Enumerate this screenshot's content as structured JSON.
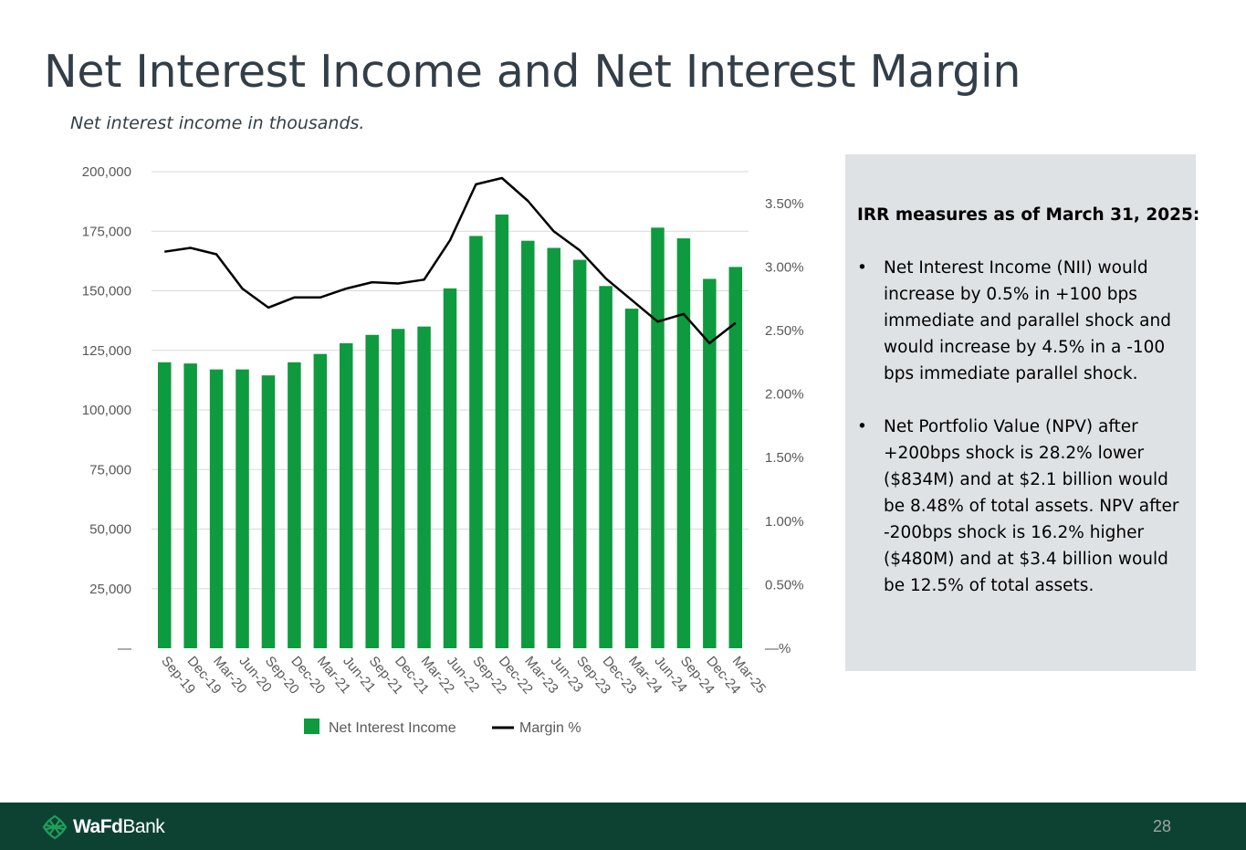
{
  "slide": {
    "title": "Net Interest Income and Net Interest Margin",
    "subtitle": "Net interest income in thousands."
  },
  "chart_data": {
    "type": "bar",
    "categories": [
      "Sep-19",
      "Dec-19",
      "Mar-20",
      "Jun-20",
      "Sep-20",
      "Dec-20",
      "Mar-21",
      "Jun-21",
      "Sep-21",
      "Dec-21",
      "Mar-22",
      "Jun-22",
      "Sep-22",
      "Dec-22",
      "Mar-23",
      "Jun-23",
      "Sep-23",
      "Dec-23",
      "Mar-24",
      "Jun-24",
      "Sep-24",
      "Dec-24",
      "Mar-25"
    ],
    "series": [
      {
        "name": "Net Interest Income",
        "type": "bar",
        "axis": "left",
        "color": "#0e9a3e",
        "values": [
          120000,
          119500,
          117000,
          117000,
          114500,
          120000,
          123500,
          128000,
          131500,
          134000,
          135000,
          151000,
          173000,
          182000,
          171000,
          168000,
          163000,
          152000,
          142500,
          176500,
          172000,
          155000,
          160000
        ]
      },
      {
        "name": "Margin %",
        "type": "line",
        "axis": "right",
        "color": "#000000",
        "values": [
          3.12,
          3.15,
          3.1,
          2.83,
          2.68,
          2.76,
          2.76,
          2.83,
          2.88,
          2.87,
          2.9,
          3.21,
          3.65,
          3.7,
          3.52,
          3.28,
          3.13,
          2.91,
          2.74,
          2.57,
          2.63,
          2.4,
          2.56
        ]
      }
    ],
    "y_left": {
      "range": [
        0,
        200000
      ],
      "ticks": [
        0,
        25000,
        50000,
        75000,
        100000,
        125000,
        150000,
        175000,
        200000
      ],
      "tick_labels": [
        "—",
        "25,000",
        "50,000",
        "75,000",
        "100,000",
        "125,000",
        "150,000",
        "175,000",
        "200,000"
      ]
    },
    "y_right": {
      "range": [
        0,
        3.75
      ],
      "ticks": [
        0,
        0.5,
        1,
        1.5,
        2,
        2.5,
        3,
        3.5
      ],
      "tick_labels": [
        "—%",
        "0.50%",
        "1.00%",
        "1.50%",
        "2.00%",
        "2.50%",
        "3.00%",
        "3.50%"
      ]
    },
    "grid": true,
    "legend_position": "bottom"
  },
  "panel": {
    "heading": "IRR measures as of March 31, 2025:",
    "bullets": [
      "Net Interest Income (NII) would increase by 0.5% in +100 bps immediate and parallel shock and would increase by 4.5% in a -100 bps immediate parallel shock.",
      "Net Portfolio Value (NPV) after +200bps shock is 28.2% lower ($834M) and at $2.1 billion would be 8.48% of total assets. NPV after -200bps shock is 16.2% higher ($480M) and at $3.4 billion would be 12.5% of total assets."
    ],
    "bullet_symbol": "•"
  },
  "footer": {
    "logo_bold": "WaFd",
    "logo_regular": "Bank",
    "logo_icon": "wafd-knot-icon",
    "page_number": "28",
    "color": "#0d4233"
  }
}
